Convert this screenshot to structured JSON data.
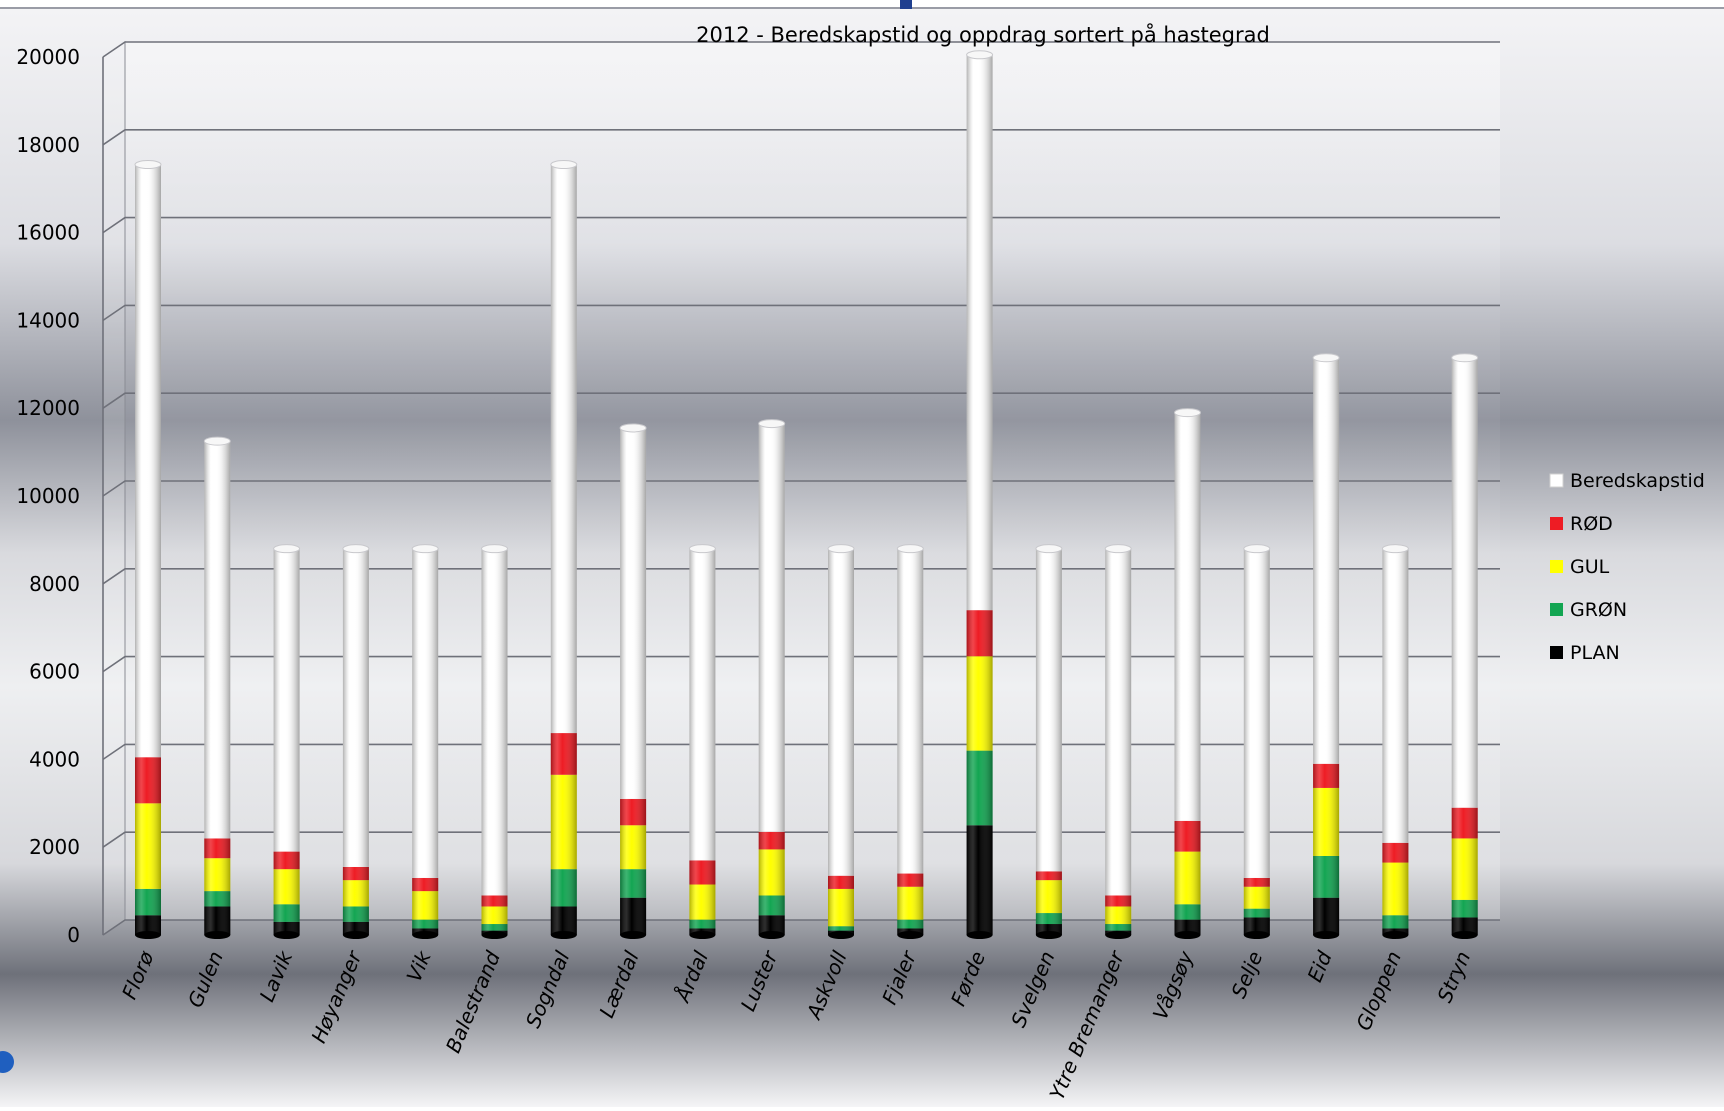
{
  "chart_data": {
    "type": "bar",
    "stacked": true,
    "title": "2012 - Beredskapstid og oppdrag sortert på hastegrad",
    "xlabel": "",
    "ylabel": "",
    "ylim": [
      0,
      20000
    ],
    "yticks": [
      0,
      2000,
      4000,
      6000,
      8000,
      10000,
      12000,
      14000,
      16000,
      18000,
      20000
    ],
    "grid": true,
    "legend_position": "right",
    "categories": [
      "Florø",
      "Gulen",
      "Lavik",
      "Høyanger",
      "Vik",
      "Balestrand",
      "Sogndal",
      "Lærdal",
      "Årdal",
      "Luster",
      "Askvoll",
      "Fjaler",
      "Førde",
      "Svelgen",
      "Ytre Bremanger",
      "Vågsøy",
      "Selje",
      "Eid",
      "Gloppen",
      "Stryn"
    ],
    "series": [
      {
        "name": "PLAN",
        "color": "#000000",
        "values": [
          450,
          650,
          300,
          300,
          150,
          100,
          650,
          850,
          150,
          450,
          100,
          150,
          2500,
          250,
          100,
          350,
          400,
          850,
          150,
          400
        ]
      },
      {
        "name": "GRØN",
        "color": "#13a552",
        "values": [
          600,
          350,
          400,
          350,
          200,
          150,
          850,
          650,
          200,
          450,
          100,
          200,
          1700,
          250,
          150,
          350,
          200,
          950,
          300,
          400
        ]
      },
      {
        "name": "GUL",
        "color": "#ffff00",
        "values": [
          1950,
          750,
          800,
          600,
          650,
          400,
          2150,
          1000,
          800,
          1050,
          850,
          750,
          2150,
          750,
          400,
          1200,
          500,
          1550,
          1200,
          1400
        ]
      },
      {
        "name": "RØD",
        "color": "#ee1c24",
        "values": [
          1050,
          450,
          400,
          300,
          300,
          250,
          950,
          600,
          550,
          400,
          300,
          300,
          1050,
          200,
          250,
          700,
          200,
          550,
          450,
          700
        ]
      },
      {
        "name": "Beredskapstid",
        "color": "#ffffff",
        "values": [
          13500,
          9050,
          6900,
          7250,
          7500,
          7900,
          12950,
          8450,
          7100,
          9300,
          7450,
          7400,
          12650,
          7350,
          7900,
          9300,
          7500,
          9250,
          6700,
          10250
        ]
      }
    ],
    "legend_order": [
      "Beredskapstid",
      "RØD",
      "GUL",
      "GRØN",
      "PLAN"
    ]
  }
}
